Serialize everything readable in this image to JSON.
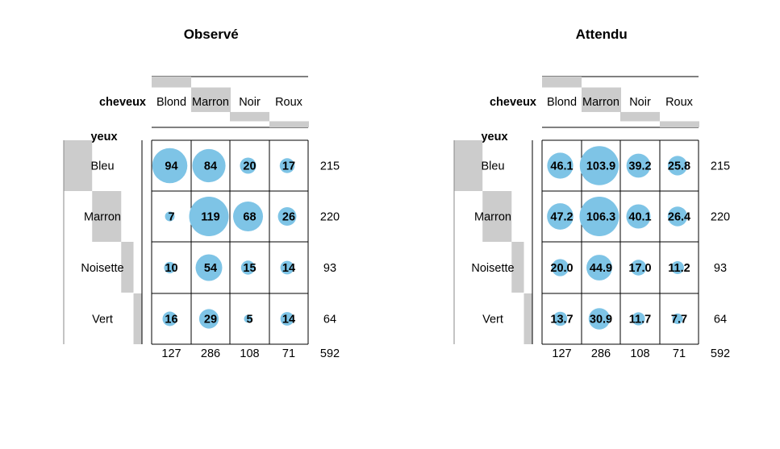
{
  "chart_data": [
    {
      "type": "balloon",
      "title": "Observé",
      "col_var": "cheveux",
      "row_var": "yeux",
      "columns": [
        "Blond",
        "Marron",
        "Noir",
        "Roux"
      ],
      "rows": [
        "Bleu",
        "Marron",
        "Noisette",
        "Vert"
      ],
      "values": [
        [
          "94",
          "84",
          "20",
          "17"
        ],
        [
          "7",
          "119",
          "68",
          "26"
        ],
        [
          "10",
          "54",
          "15",
          "14"
        ],
        [
          "16",
          "29",
          "5",
          "14"
        ]
      ],
      "row_totals": [
        "215",
        "220",
        "93",
        "64"
      ],
      "col_totals": [
        "127",
        "286",
        "108",
        "71"
      ],
      "grand_total": "592"
    },
    {
      "type": "balloon",
      "title": "Attendu",
      "col_var": "cheveux",
      "row_var": "yeux",
      "columns": [
        "Blond",
        "Marron",
        "Noir",
        "Roux"
      ],
      "rows": [
        "Bleu",
        "Marron",
        "Noisette",
        "Vert"
      ],
      "values": [
        [
          "46.1",
          "103.9",
          "39.2",
          "25.8"
        ],
        [
          "47.2",
          "106.3",
          "40.1",
          "26.4"
        ],
        [
          "20.0",
          "44.9",
          "17.0",
          "11.2"
        ],
        [
          "13.7",
          "30.9",
          "11.7",
          "7.7"
        ]
      ],
      "row_totals": [
        "215",
        "220",
        "93",
        "64"
      ],
      "col_totals": [
        "127",
        "286",
        "108",
        "71"
      ],
      "grand_total": "592"
    }
  ],
  "colors": {
    "balloon": "#7ec4e6",
    "marginal_bar": "#cccccc",
    "line": "#000000"
  }
}
